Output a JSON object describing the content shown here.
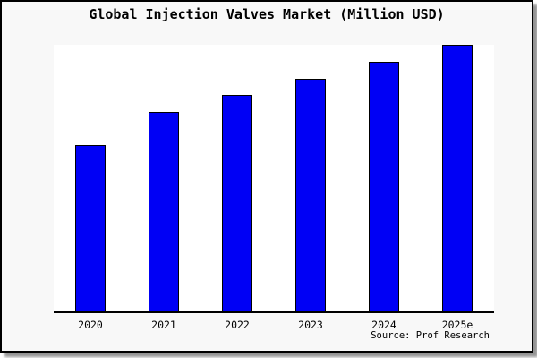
{
  "chart_data": {
    "type": "bar",
    "title": "Global Injection Valves Market (Million USD)",
    "categories": [
      "2020",
      "2021",
      "2022",
      "2023",
      "2024",
      "2025e"
    ],
    "values": [
      62.4,
      74.8,
      81.2,
      87.2,
      93.5,
      99.9
    ],
    "values_note": "No y-axis tick labels are shown in the figure; values are relative bar heights estimated as percent of the tallest bar (2025e = 100).",
    "xlabel": "",
    "ylabel": "",
    "ylim": [
      0,
      100
    ],
    "grid": false,
    "legend": null,
    "source_note": "Source: Prof Research",
    "colors": {
      "bar_fill": "#0000F5",
      "bar_border": "#000000",
      "figure_background": "#f8f8f8",
      "plot_background": "#ffffff",
      "axis_line": "#000000",
      "text": "#000000"
    }
  }
}
